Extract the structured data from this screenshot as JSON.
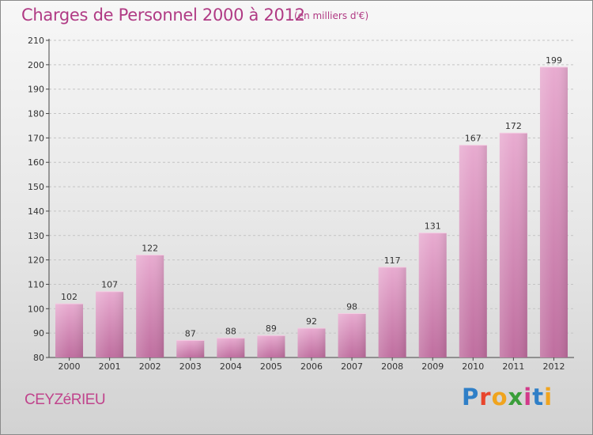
{
  "header": {
    "title": "Charges de Personnel 2000 à 2012",
    "subtitle": "(en milliers d'€)"
  },
  "footer": {
    "commune": "CEYZéRIEU",
    "logo_letters": [
      {
        "ch": "P",
        "color": "#2f7fc7"
      },
      {
        "ch": "r",
        "color": "#e8452c"
      },
      {
        "ch": "o",
        "color": "#f0a41e"
      },
      {
        "ch": "x",
        "color": "#3a9e3a"
      },
      {
        "ch": "i",
        "color": "#d23a8a"
      },
      {
        "ch": "t",
        "color": "#2f7fc7"
      },
      {
        "ch": "i",
        "color": "#f0a41e"
      }
    ]
  },
  "chart_data": {
    "type": "bar",
    "title": "Charges de Personnel 2000 à 2012",
    "subtitle": "(en milliers d'€)",
    "xlabel": "",
    "ylabel": "",
    "categories": [
      "2000",
      "2001",
      "2002",
      "2003",
      "2004",
      "2005",
      "2006",
      "2007",
      "2008",
      "2009",
      "2010",
      "2011",
      "2012"
    ],
    "values": [
      102,
      107,
      122,
      87,
      88,
      89,
      92,
      98,
      117,
      131,
      167,
      172,
      199
    ],
    "ylim": [
      80,
      210
    ],
    "yticks": [
      80,
      90,
      100,
      110,
      120,
      130,
      140,
      150,
      160,
      170,
      180,
      190,
      200,
      210
    ],
    "grid": true,
    "bar_color": "#d88bb8",
    "bar_color_light": "#e8abd0",
    "bar_color_dark": "#bf6e9f",
    "show_value_labels": true
  }
}
